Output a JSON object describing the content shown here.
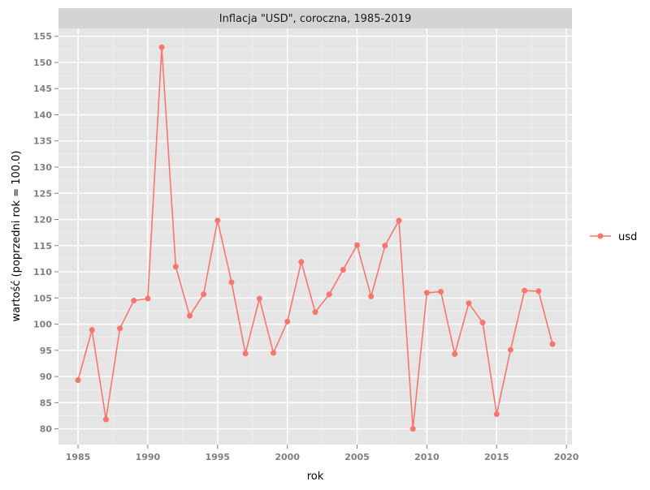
{
  "chart_data": {
    "type": "line",
    "title": "Inflacja \"USD\", coroczna, 1985-2019",
    "xlabel": "rok",
    "ylabel": "wartość (poprzedni rok = 100.0)",
    "xlim": [
      1983.6,
      2020.4
    ],
    "ylim": [
      77.0,
      156.5
    ],
    "x_ticks": [
      1985,
      1990,
      1995,
      2000,
      2005,
      2010,
      2015,
      2020
    ],
    "y_ticks": [
      80,
      85,
      90,
      95,
      100,
      105,
      110,
      115,
      120,
      125,
      130,
      135,
      140,
      145,
      150,
      155
    ],
    "grid": true,
    "legend_position": "right",
    "series": [
      {
        "name": "usd",
        "color": "#f8766d",
        "x": [
          1985,
          1986,
          1987,
          1988,
          1989,
          1990,
          1991,
          1992,
          1993,
          1994,
          1995,
          1996,
          1997,
          1998,
          1999,
          2000,
          2001,
          2002,
          2003,
          2004,
          2005,
          2006,
          2007,
          2008,
          2009,
          2010,
          2011,
          2012,
          2013,
          2014,
          2015,
          2016,
          2017,
          2018,
          2019
        ],
        "values": [
          89.3,
          98.9,
          81.8,
          99.2,
          104.5,
          104.9,
          152.9,
          111.0,
          101.6,
          105.7,
          119.8,
          108.0,
          94.4,
          104.9,
          94.5,
          100.5,
          111.9,
          102.3,
          105.7,
          110.4,
          115.1,
          105.3,
          115.0,
          119.8,
          80.0,
          106.0,
          106.2,
          94.3,
          104.0,
          100.3,
          82.8,
          95.1,
          106.4,
          106.3,
          96.2
        ]
      }
    ]
  }
}
